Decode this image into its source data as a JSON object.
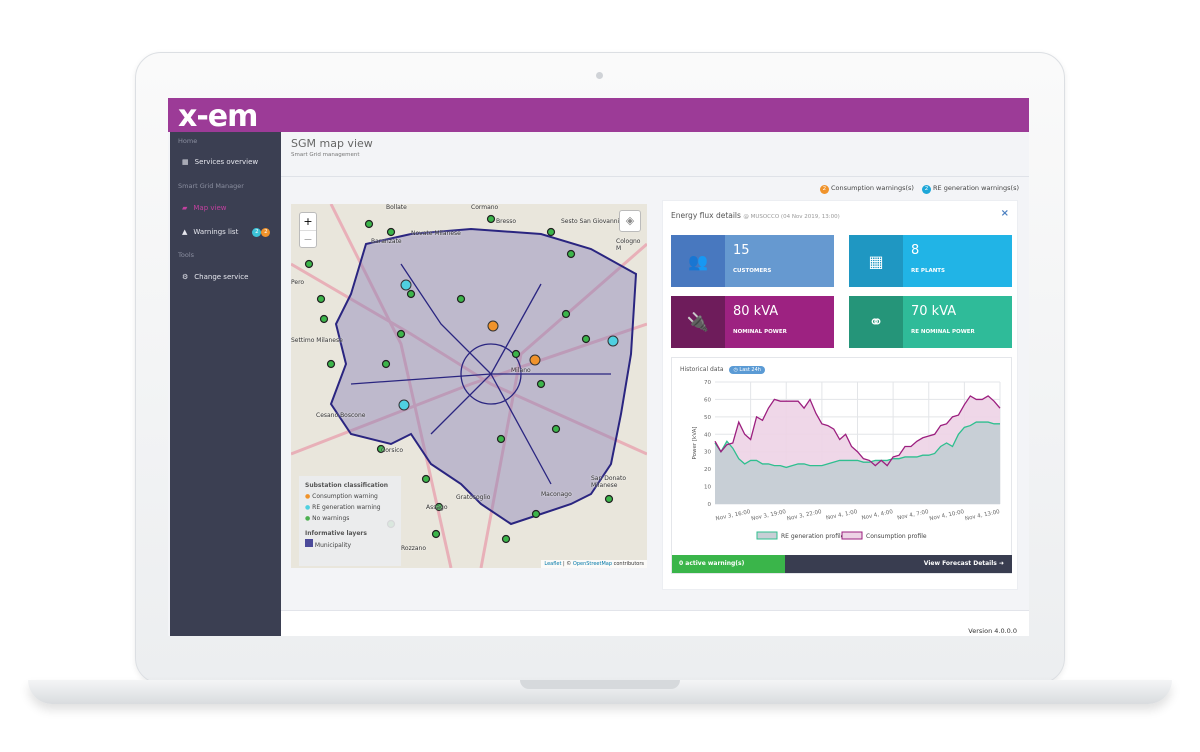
{
  "app": {
    "logo": "x-em",
    "version": "Version 4.0.0.0"
  },
  "sidebar": {
    "sections": [
      "Home",
      "Smart Grid Manager",
      "Tools"
    ],
    "items": [
      {
        "label": "Services overview",
        "icon": "grid-icon"
      },
      {
        "label": "Map view",
        "icon": "map-icon",
        "active": true
      },
      {
        "label": "Warnings list",
        "icon": "warning-icon",
        "badges": [
          "2",
          "2"
        ]
      },
      {
        "label": "Change service",
        "icon": "gears-icon"
      }
    ]
  },
  "page": {
    "title": "SGM map view",
    "subtitle": "Smart Grid management"
  },
  "warnings": {
    "consumption_count": "2",
    "consumption_label": "Consumption warnings(s)",
    "re_count": "2",
    "re_label": "RE generation warnings(s)",
    "colors": {
      "consumption": "#f0932b",
      "re": "#1ea7d8"
    }
  },
  "map": {
    "zoom_in": "+",
    "zoom_out": "−",
    "legend": {
      "title": "Substation classification",
      "items": [
        "Consumption warning",
        "RE generation warning",
        "No warnings"
      ],
      "layers_title": "Informative layers",
      "layers": [
        "Municipality"
      ]
    },
    "attribution_leaflet": "Leaflet",
    "attribution_sep": " | © ",
    "attribution_osm": "OpenStreetMap",
    "attribution_rest": " contributors",
    "place_labels": [
      "Bollate",
      "Cormano",
      "Bresso",
      "Sesto San Giovanni",
      "Novate Milanese",
      "Baranzate",
      "Cologno M",
      "Pero",
      "Milano",
      "Corsico",
      "Rozzano",
      "Assago",
      "San Donato Milanese",
      "Cesano Boscone",
      "Gratosoglio",
      "Maconago",
      "Settimo Milanese"
    ]
  },
  "panel": {
    "title": "Energy flux details",
    "subtitle": "@ MUSOCCO (04 Nov 2019, 13:00)",
    "close": "×",
    "cards": [
      {
        "value": "15",
        "label": "CUSTOMERS",
        "icon": "users-icon"
      },
      {
        "value": "8",
        "label": "RE PLANTS",
        "icon": "solar-panel-icon"
      },
      {
        "value": "80 kVA",
        "label": "NOMINAL POWER",
        "icon": "plug-icon"
      },
      {
        "value": "70 kVA",
        "label": "RE NOMINAL POWER",
        "icon": "hub-icon"
      }
    ],
    "history_label": "Historical data",
    "range_badge": "Last 24h",
    "active_warnings": "0 active warning(s)",
    "forecast_button": "View Forecast Details"
  },
  "chart_data": {
    "type": "area",
    "ylabel": "Power [kVA]",
    "ylim": [
      0,
      70
    ],
    "yticks": [
      0,
      10,
      20,
      30,
      40,
      50,
      60,
      70
    ],
    "xticks": [
      "Nov 3, 16:00",
      "Nov 3, 19:00",
      "Nov 3, 22:00",
      "Nov 4, 1:00",
      "Nov 4, 4:00",
      "Nov 4, 7:00",
      "Nov 4, 10:00",
      "Nov 4, 13:00"
    ],
    "x_start": "Nov 3, 13:00",
    "x_end": "Nov 4, 13:00",
    "x_step_minutes": 30,
    "grid": true,
    "legend": "bottom",
    "series": [
      {
        "name": "RE generation profile",
        "color": "#2fbf8f",
        "fill": "#c8cfd6",
        "values": [
          35,
          30,
          36,
          32,
          26,
          23,
          25,
          25,
          23,
          23,
          22,
          22,
          21,
          22,
          23,
          23,
          22,
          22,
          22,
          23,
          24,
          25,
          25,
          25,
          25,
          24,
          24,
          25,
          25,
          25,
          26,
          26,
          27,
          27,
          27,
          28,
          28,
          29,
          33,
          35,
          33,
          40,
          44,
          45,
          47,
          47,
          47,
          46,
          46
        ]
      },
      {
        "name": "Consumption profile",
        "color": "#9c1f7f",
        "fill": "#edd3e5",
        "values": [
          36,
          30,
          34,
          35,
          47,
          40,
          37,
          50,
          48,
          55,
          60,
          59,
          59,
          59,
          59,
          55,
          60,
          52,
          46,
          45,
          43,
          37,
          40,
          33,
          30,
          26,
          25,
          22,
          25,
          22,
          27,
          28,
          33,
          33,
          36,
          38,
          39,
          40,
          45,
          46,
          50,
          51,
          57,
          62,
          60,
          60,
          62,
          59,
          55
        ]
      }
    ]
  }
}
